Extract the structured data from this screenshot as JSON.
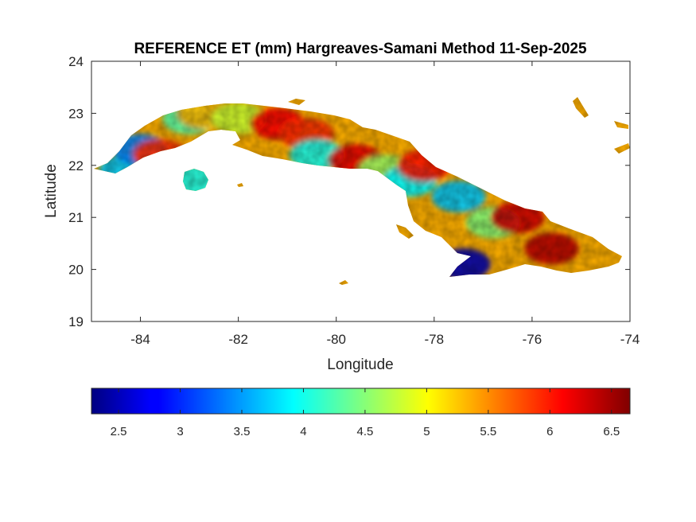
{
  "chart_data": {
    "type": "heatmap",
    "title": "REFERENCE ET (mm) Hargreaves-Samani Method  11-Sep-2025",
    "xlabel": "Longitude",
    "ylabel": "Latitude",
    "xlim": [
      -85,
      -74
    ],
    "ylim": [
      19,
      24
    ],
    "x_ticks": [
      -84,
      -82,
      -80,
      -78,
      -76,
      -74
    ],
    "y_ticks": [
      19,
      20,
      21,
      22,
      23,
      24
    ],
    "x_tick_labels": [
      "-84",
      "-82",
      "-80",
      "-78",
      "-76",
      "-74"
    ],
    "y_tick_labels": [
      "19",
      "20",
      "21",
      "22",
      "23",
      "24"
    ],
    "colorbar": {
      "colormap": "jet",
      "range": [
        2.28,
        6.65
      ],
      "ticks": [
        2.5,
        3,
        3.5,
        4,
        4.5,
        5,
        5.5,
        6,
        6.5
      ],
      "tick_labels": [
        "2.5",
        "3",
        "3.5",
        "4",
        "4.5",
        "5",
        "5.5",
        "6",
        "6.5"
      ],
      "placement": "bottom"
    },
    "grid": false,
    "regions": [
      {
        "lon": -84.3,
        "lat": 21.9,
        "value": 3.7
      },
      {
        "lon": -84.0,
        "lat": 22.3,
        "value": 3.4
      },
      {
        "lon": -83.6,
        "lat": 22.2,
        "value": 5.9
      },
      {
        "lon": -83.0,
        "lat": 22.9,
        "value": 4.3
      },
      {
        "lon": -82.7,
        "lat": 23.0,
        "value": 5.3
      },
      {
        "lon": -82.0,
        "lat": 22.9,
        "value": 4.8
      },
      {
        "lon": -81.2,
        "lat": 22.8,
        "value": 6.1
      },
      {
        "lon": -80.6,
        "lat": 22.6,
        "value": 5.9
      },
      {
        "lon": -80.4,
        "lat": 22.2,
        "value": 4.0
      },
      {
        "lon": -79.6,
        "lat": 22.1,
        "value": 6.2
      },
      {
        "lon": -79.0,
        "lat": 21.9,
        "value": 4.6
      },
      {
        "lon": -78.5,
        "lat": 21.7,
        "value": 3.9
      },
      {
        "lon": -78.2,
        "lat": 22.0,
        "value": 6.0
      },
      {
        "lon": -77.5,
        "lat": 21.4,
        "value": 3.7
      },
      {
        "lon": -76.8,
        "lat": 20.9,
        "value": 4.5
      },
      {
        "lon": -77.4,
        "lat": 20.1,
        "value": 2.5
      },
      {
        "lon": -76.3,
        "lat": 21.0,
        "value": 6.3
      },
      {
        "lon": -75.6,
        "lat": 20.4,
        "value": 6.4
      },
      {
        "lon": -82.9,
        "lat": 21.7,
        "value": 4.0
      }
    ]
  }
}
